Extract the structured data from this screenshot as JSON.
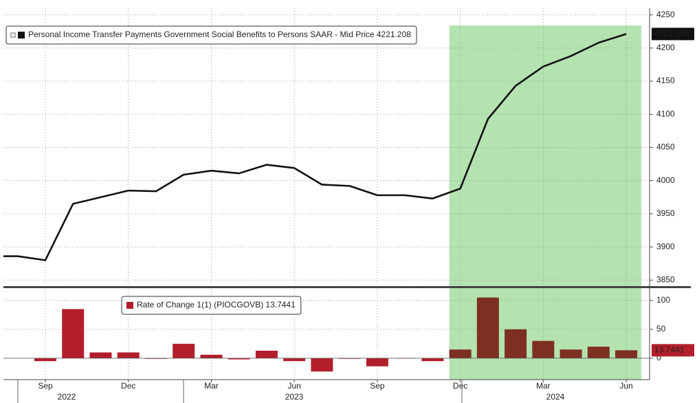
{
  "chart_data": [
    {
      "type": "line",
      "categories": [
        null,
        null,
        "Sep",
        null,
        null,
        "Dec",
        null,
        null,
        "Mar",
        null,
        null,
        "Jun",
        null,
        null,
        "Sep",
        null,
        null,
        "Dec",
        null,
        null,
        "Mar",
        null,
        null,
        "Jun"
      ],
      "years": [
        "2022",
        "2023",
        "2024"
      ],
      "series": [
        {
          "name": "Personal Income Transfer Payments Government Social Benefits to Persons SAAR - Mid Price 4221.208",
          "color": "#111111",
          "values": [
            3886,
            3886,
            3880,
            3965,
            3975,
            3985,
            3984,
            4009,
            4015,
            4011,
            4024,
            4019,
            3994,
            3992,
            3978,
            3978,
            3973,
            3988,
            4093,
            4143,
            4172,
            4188,
            4208,
            4221.208
          ],
          "last_label": "4221.208"
        }
      ],
      "ylim": [
        3842,
        4260
      ],
      "yticks": [
        3850,
        3900,
        3950,
        4000,
        4050,
        4100,
        4150,
        4200,
        4250
      ],
      "grid": true,
      "shade": {
        "color": "#b4e2b0",
        "from": 17,
        "to": 23
      }
    },
    {
      "type": "bar",
      "series": [
        {
          "name": "Rate of Change 1(1) (PIOCGOVB) 13.7441",
          "color": "#b21e2b",
          "shaded_color": "#7d2f22",
          "values": [
            null,
            null,
            -5,
            85,
            10,
            10,
            -1,
            25,
            6,
            -2,
            13,
            -5,
            -23,
            -1,
            -14,
            0,
            -5,
            15,
            105,
            50,
            30,
            15,
            20,
            13.7441
          ],
          "last_label": "13.7441"
        }
      ],
      "ylim": [
        -37,
        120
      ],
      "yticks": [
        0,
        50,
        100
      ],
      "grid": true
    }
  ]
}
